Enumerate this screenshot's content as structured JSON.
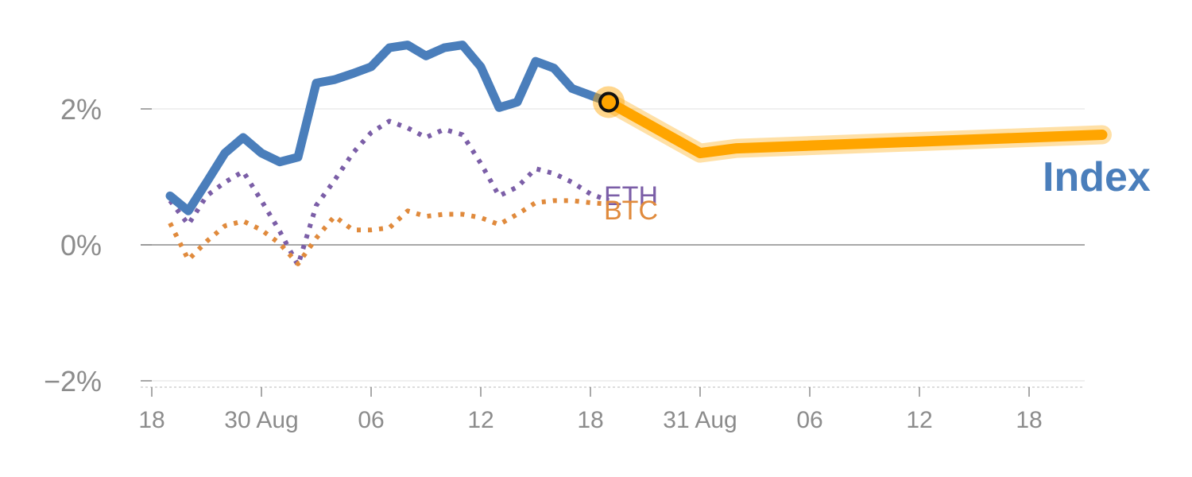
{
  "chart_data": {
    "type": "line",
    "title": "",
    "xlabel": "",
    "ylabel": "",
    "ylim": [
      -2.1,
      3.1
    ],
    "yticks": [
      {
        "value": 2,
        "label": "2%"
      },
      {
        "value": 0,
        "label": "0%"
      },
      {
        "value": -2,
        "label": "−2%"
      }
    ],
    "xlim": [
      0,
      51
    ],
    "xticks": [
      {
        "value": 0,
        "label": "18"
      },
      {
        "value": 6,
        "label": "30 Aug"
      },
      {
        "value": 12,
        "label": "06"
      },
      {
        "value": 18,
        "label": "12"
      },
      {
        "value": 24,
        "label": "18"
      },
      {
        "value": 30,
        "label": "31 Aug"
      },
      {
        "value": 36,
        "label": "06"
      },
      {
        "value": 42,
        "label": "12"
      },
      {
        "value": 48,
        "label": "18"
      }
    ],
    "grid": true,
    "series": [
      {
        "name": "Index",
        "style": "solid",
        "color": "#4a7ebb",
        "points": [
          [
            1,
            0.72
          ],
          [
            2,
            0.5
          ],
          [
            3,
            0.92
          ],
          [
            4,
            1.35
          ],
          [
            5,
            1.58
          ],
          [
            6,
            1.35
          ],
          [
            7,
            1.22
          ],
          [
            8,
            1.29
          ],
          [
            9,
            2.38
          ],
          [
            10,
            2.43
          ],
          [
            11,
            2.52
          ],
          [
            12,
            2.62
          ],
          [
            13,
            2.9
          ],
          [
            14,
            2.94
          ],
          [
            15,
            2.78
          ],
          [
            16,
            2.9
          ],
          [
            17,
            2.94
          ],
          [
            18,
            2.62
          ],
          [
            19,
            2.02
          ],
          [
            20,
            2.1
          ],
          [
            21,
            2.7
          ],
          [
            22,
            2.6
          ],
          [
            23,
            2.3
          ],
          [
            24,
            2.2
          ],
          [
            25,
            2.1
          ]
        ]
      },
      {
        "name": "Index",
        "style": "forecast",
        "color": "#ffa500",
        "points": [
          [
            25,
            2.1
          ],
          [
            30,
            1.35
          ],
          [
            32,
            1.42
          ],
          [
            52,
            1.62
          ]
        ]
      },
      {
        "name": "ETH",
        "style": "dotted",
        "color": "#7b5ea7",
        "points": [
          [
            1,
            0.65
          ],
          [
            2,
            0.3
          ],
          [
            3,
            0.72
          ],
          [
            4,
            0.92
          ],
          [
            5,
            1.08
          ],
          [
            6,
            0.65
          ],
          [
            7,
            0.2
          ],
          [
            8,
            -0.3
          ],
          [
            9,
            0.58
          ],
          [
            10,
            0.95
          ],
          [
            11,
            1.35
          ],
          [
            12,
            1.65
          ],
          [
            13,
            1.82
          ],
          [
            14,
            1.72
          ],
          [
            15,
            1.58
          ],
          [
            16,
            1.7
          ],
          [
            17,
            1.62
          ],
          [
            18,
            1.2
          ],
          [
            19,
            0.72
          ],
          [
            20,
            0.85
          ],
          [
            21,
            1.12
          ],
          [
            22,
            1.05
          ],
          [
            23,
            0.92
          ],
          [
            24,
            0.75
          ],
          [
            25,
            0.65
          ]
        ]
      },
      {
        "name": "BTC",
        "style": "dotted",
        "color": "#e08a3c",
        "points": [
          [
            1,
            0.32
          ],
          [
            2,
            -0.22
          ],
          [
            3,
            0.05
          ],
          [
            4,
            0.28
          ],
          [
            5,
            0.35
          ],
          [
            6,
            0.22
          ],
          [
            7,
            0.02
          ],
          [
            8,
            -0.28
          ],
          [
            9,
            0.1
          ],
          [
            10,
            0.42
          ],
          [
            11,
            0.22
          ],
          [
            12,
            0.22
          ],
          [
            13,
            0.25
          ],
          [
            14,
            0.5
          ],
          [
            15,
            0.42
          ],
          [
            16,
            0.45
          ],
          [
            17,
            0.45
          ],
          [
            18,
            0.4
          ],
          [
            19,
            0.3
          ],
          [
            20,
            0.45
          ],
          [
            21,
            0.62
          ],
          [
            22,
            0.65
          ],
          [
            23,
            0.65
          ],
          [
            24,
            0.62
          ],
          [
            25,
            0.6
          ]
        ]
      }
    ],
    "highlight_point": {
      "x": 25,
      "y": 2.1
    },
    "labels": {
      "index": "Index",
      "eth": "ETH",
      "btc": "BTC"
    },
    "colors": {
      "index": "#4a7ebb",
      "forecast": "#ffa500",
      "eth": "#7b5ea7",
      "btc": "#e08a3c",
      "axis": "#8c8c8c",
      "grid": "#e6e6e6"
    }
  }
}
